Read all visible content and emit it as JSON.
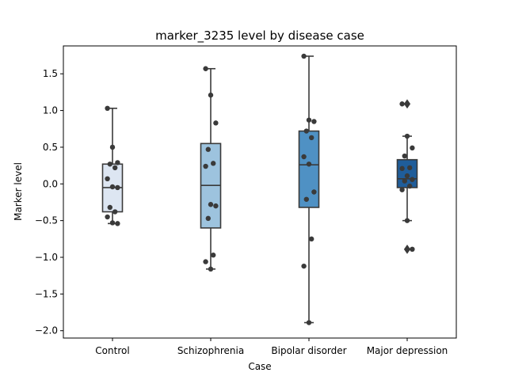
{
  "chart_data": {
    "type": "box",
    "title": "marker_3235 level by disease case",
    "xlabel": "Case",
    "ylabel": "Marker level",
    "ylim": [
      -2.1,
      1.88
    ],
    "yticks": [
      -2.0,
      -1.5,
      -1.0,
      -0.5,
      0.0,
      0.5,
      1.0,
      1.5
    ],
    "yticklabels": [
      "−2.0",
      "−1.5",
      "−1.0",
      "−0.5",
      "0.0",
      "0.5",
      "1.0",
      "1.5"
    ],
    "grid": false,
    "categories": [
      "Control",
      "Schizophrenia",
      "Bipolar disorder",
      "Major depression"
    ],
    "boxes": [
      {
        "color": "#dde6f2",
        "whisker_low": -0.54,
        "q1": -0.38,
        "median": -0.05,
        "q3": 0.27,
        "whisker_high": 1.03,
        "outliers": [],
        "points": [
          1.03,
          0.5,
          0.29,
          0.27,
          0.22,
          0.07,
          -0.04,
          -0.05,
          -0.32,
          -0.38,
          -0.45,
          -0.53,
          -0.54
        ]
      },
      {
        "color": "#9dc3de",
        "whisker_low": -1.16,
        "q1": -0.6,
        "median": -0.02,
        "q3": 0.55,
        "whisker_high": 1.57,
        "outliers": [],
        "points": [
          1.57,
          1.21,
          0.83,
          0.47,
          0.28,
          0.24,
          -0.28,
          -0.3,
          -0.47,
          -0.97,
          -1.06,
          -1.16
        ]
      },
      {
        "color": "#4f91c4",
        "whisker_low": -1.89,
        "q1": -0.32,
        "median": 0.26,
        "q3": 0.72,
        "whisker_high": 1.74,
        "outliers": [],
        "points": [
          1.74,
          0.87,
          0.85,
          0.72,
          0.63,
          0.37,
          0.27,
          -0.11,
          -0.21,
          -0.75,
          -1.12,
          -1.89
        ]
      },
      {
        "color": "#1f5d9a",
        "whisker_low": -0.5,
        "q1": -0.05,
        "median": 0.07,
        "q3": 0.33,
        "whisker_high": 0.65,
        "outliers": [
          1.09,
          -0.89
        ],
        "points": [
          1.09,
          0.65,
          0.49,
          0.38,
          0.22,
          0.21,
          0.11,
          0.06,
          0.04,
          -0.03,
          -0.08,
          -0.5,
          -0.89
        ]
      }
    ]
  }
}
